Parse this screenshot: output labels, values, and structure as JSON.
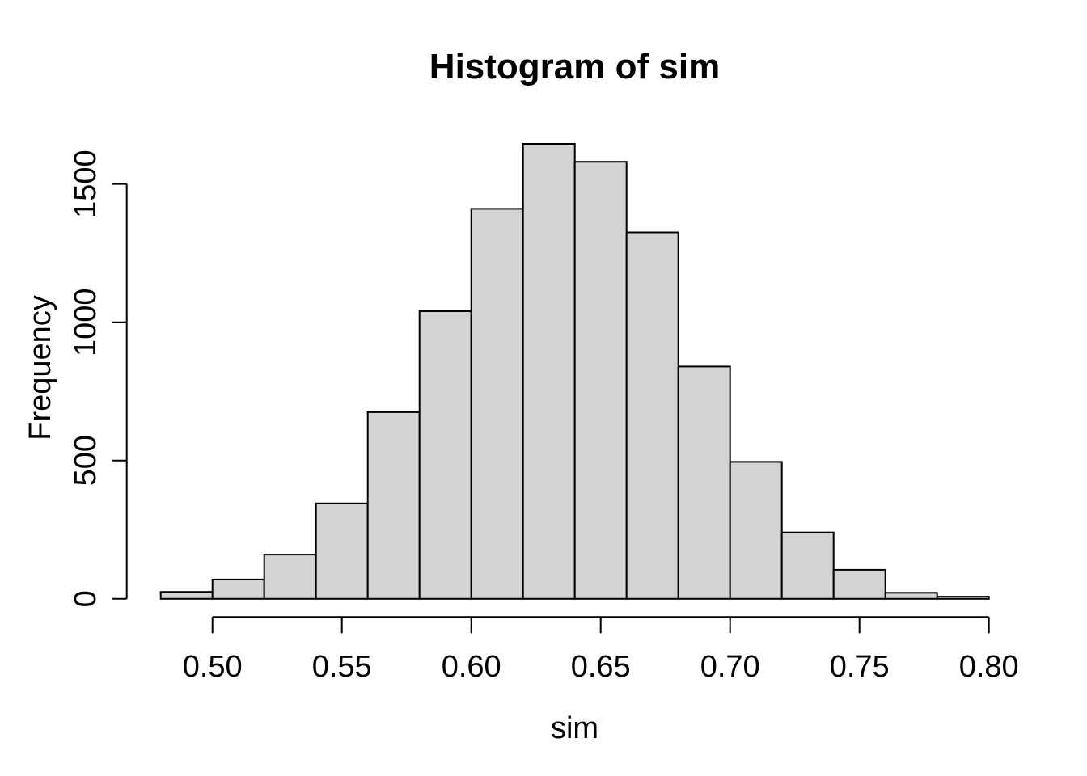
{
  "chart_data": {
    "type": "bar",
    "subtype": "histogram",
    "title": "Histogram of sim",
    "xlabel": "sim",
    "ylabel": "Frequency",
    "bins": {
      "start": 0.48,
      "width": 0.02,
      "count": 16
    },
    "categories": [
      "0.48-0.50",
      "0.50-0.52",
      "0.52-0.54",
      "0.54-0.56",
      "0.56-0.58",
      "0.58-0.60",
      "0.60-0.62",
      "0.62-0.64",
      "0.64-0.66",
      "0.66-0.68",
      "0.68-0.70",
      "0.70-0.72",
      "0.72-0.74",
      "0.74-0.76",
      "0.76-0.78",
      "0.78-0.80"
    ],
    "values": [
      25,
      70,
      160,
      345,
      675,
      1040,
      1410,
      1645,
      1580,
      1325,
      840,
      495,
      240,
      105,
      22,
      8
    ],
    "x_ticks": [
      {
        "value": 0.5,
        "label": "0.50"
      },
      {
        "value": 0.55,
        "label": "0.55"
      },
      {
        "value": 0.6,
        "label": "0.60"
      },
      {
        "value": 0.65,
        "label": "0.65"
      },
      {
        "value": 0.7,
        "label": "0.70"
      },
      {
        "value": 0.75,
        "label": "0.75"
      },
      {
        "value": 0.8,
        "label": "0.80"
      }
    ],
    "y_ticks": [
      {
        "value": 0,
        "label": "0"
      },
      {
        "value": 500,
        "label": "500"
      },
      {
        "value": 1000,
        "label": "1000"
      },
      {
        "value": 1500,
        "label": "1500"
      }
    ],
    "xlim": [
      0.48,
      0.8
    ],
    "ylim": [
      0,
      1645
    ],
    "grid": false,
    "legend": "none",
    "colors": {
      "background": "#ffffff",
      "bar_fill": "#d3d3d3",
      "bar_border": "#000000",
      "axis": "#000000",
      "text": "#000000"
    }
  }
}
